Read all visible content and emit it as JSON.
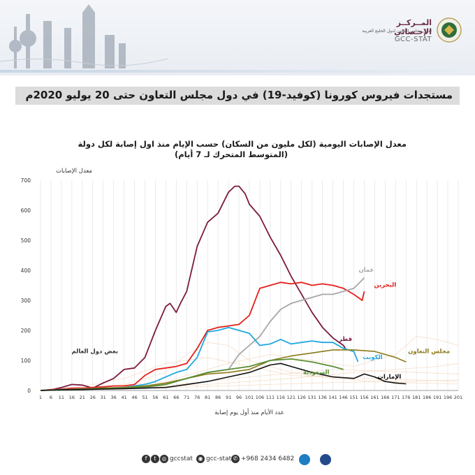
{
  "header": {
    "org_ar": "المــركــز الإحـصائي",
    "org_ar_sub": "لدول مجلس التعاون لدول الخليج العربية",
    "org_en": "GCC-STAT"
  },
  "page_title": "مستجدات فيروس كورونا (كوفيد-19) في دول مجلس التعاون حتى 20 يوليو 2020م",
  "chart_data": {
    "type": "line",
    "title": "معدل الإصابات اليومية (لكل مليون من السكان) حسب الإيام منذ اول إصابة لكل دولة",
    "subtitle": "(المتوسط المتحرك لـ 7 أيام)",
    "ylabel": "معدل الإصابات",
    "xlabel": "عدد الأيام منذ أول يوم إصابة",
    "ylim": [
      0,
      700
    ],
    "xlim": [
      1,
      201
    ],
    "yticks": [
      0,
      100,
      200,
      300,
      400,
      500,
      600,
      700
    ],
    "xticks": [
      1,
      6,
      11,
      16,
      21,
      26,
      31,
      36,
      41,
      46,
      51,
      56,
      61,
      66,
      71,
      76,
      81,
      86,
      91,
      96,
      101,
      106,
      111,
      116,
      121,
      126,
      131,
      136,
      141,
      146,
      151,
      156,
      161,
      166,
      171,
      176,
      181,
      186,
      191,
      196,
      201
    ],
    "grid": "vertical",
    "series": [
      {
        "name": "قطر",
        "color": "#7b1a3f",
        "x": [
          1,
          6,
          11,
          16,
          21,
          26,
          31,
          36,
          41,
          46,
          51,
          56,
          61,
          63,
          66,
          68,
          71,
          76,
          81,
          86,
          91,
          94,
          96,
          99,
          101,
          106,
          111,
          116,
          121,
          126,
          131,
          136,
          141,
          146,
          147
        ],
        "y": [
          0,
          2,
          10,
          20,
          18,
          8,
          25,
          40,
          70,
          75,
          110,
          200,
          280,
          290,
          260,
          290,
          330,
          480,
          560,
          590,
          660,
          680,
          680,
          655,
          620,
          580,
          510,
          450,
          380,
          320,
          260,
          210,
          175,
          150,
          140
        ]
      },
      {
        "name": "البحرين",
        "color": "#e3201b",
        "x": [
          1,
          6,
          11,
          16,
          21,
          26,
          31,
          36,
          41,
          46,
          51,
          56,
          61,
          66,
          71,
          76,
          81,
          86,
          91,
          96,
          101,
          106,
          111,
          116,
          121,
          126,
          131,
          136,
          141,
          146,
          151,
          155,
          156
        ],
        "y": [
          0,
          3,
          5,
          8,
          8,
          10,
          12,
          15,
          15,
          20,
          50,
          70,
          75,
          80,
          90,
          140,
          200,
          210,
          215,
          220,
          250,
          340,
          350,
          360,
          355,
          360,
          350,
          355,
          350,
          340,
          320,
          300,
          330
        ]
      },
      {
        "name": "عمان",
        "color": "#a7a7a7",
        "x": [
          1,
          11,
          21,
          31,
          41,
          51,
          61,
          71,
          81,
          91,
          96,
          101,
          106,
          111,
          116,
          121,
          126,
          131,
          136,
          141,
          146,
          151,
          156
        ],
        "y": [
          0,
          3,
          5,
          5,
          8,
          10,
          20,
          40,
          60,
          70,
          120,
          150,
          180,
          230,
          270,
          290,
          300,
          310,
          320,
          320,
          330,
          340,
          375
        ]
      },
      {
        "name": "الكويت",
        "color": "#1fa8df",
        "x": [
          1,
          11,
          21,
          31,
          41,
          51,
          56,
          61,
          66,
          71,
          76,
          81,
          86,
          91,
          96,
          101,
          106,
          111,
          116,
          121,
          126,
          131,
          136,
          141,
          146,
          151,
          153
        ],
        "y": [
          0,
          3,
          5,
          8,
          10,
          20,
          30,
          45,
          60,
          70,
          110,
          195,
          200,
          210,
          200,
          190,
          150,
          155,
          170,
          155,
          160,
          165,
          160,
          160,
          140,
          130,
          95
        ]
      },
      {
        "name": "مجلس التعاون",
        "color": "#8b7a18",
        "x": [
          1,
          11,
          21,
          31,
          41,
          51,
          61,
          71,
          81,
          91,
          101,
          111,
          121,
          131,
          141,
          151,
          161,
          171,
          176
        ],
        "y": [
          0,
          3,
          5,
          8,
          10,
          15,
          25,
          40,
          55,
          60,
          70,
          100,
          115,
          125,
          135,
          135,
          130,
          110,
          95
        ]
      },
      {
        "name": "السعودية",
        "color": "#5a8e34",
        "x": [
          1,
          11,
          21,
          31,
          41,
          51,
          61,
          71,
          81,
          91,
          101,
          111,
          121,
          131,
          141,
          146
        ],
        "y": [
          0,
          2,
          4,
          6,
          8,
          12,
          20,
          40,
          60,
          70,
          80,
          100,
          105,
          95,
          80,
          70
        ]
      },
      {
        "name": "الإمارات",
        "color": "#111111",
        "x": [
          1,
          11,
          21,
          31,
          41,
          51,
          61,
          71,
          81,
          91,
          101,
          111,
          116,
          121,
          131,
          141,
          151,
          156,
          161,
          166,
          171,
          176
        ],
        "y": [
          0,
          2,
          3,
          5,
          6,
          8,
          10,
          20,
          30,
          45,
          60,
          85,
          90,
          80,
          60,
          45,
          40,
          55,
          45,
          30,
          25,
          22
        ]
      }
    ],
    "background_series_label": "بعض دول العالم",
    "annotations": [
      {
        "text": "عمان",
        "x": 157,
        "y": 395,
        "color": "#a7a7a7"
      },
      {
        "text": "البحرين",
        "x": 166,
        "y": 345,
        "color": "#e3201b"
      },
      {
        "text": "قطر",
        "x": 147,
        "y": 165,
        "color": "#7b1a3f"
      },
      {
        "text": "مجلس التعاون",
        "x": 187,
        "y": 125,
        "color": "#8b7a18"
      },
      {
        "text": "الكويت",
        "x": 160,
        "y": 105,
        "color": "#1fa8df"
      },
      {
        "text": "السعودية",
        "x": 133,
        "y": 55,
        "color": "#5a8e34"
      },
      {
        "text": "الإمارات",
        "x": 168,
        "y": 40,
        "color": "#111111"
      },
      {
        "text": "بعض دول العالم",
        "x": 27,
        "y": 125,
        "color": "#333333"
      }
    ]
  },
  "footer": {
    "social_handle": "gccstat",
    "handle2": "gcc-stat",
    "phone": "+968 2434 6482"
  }
}
